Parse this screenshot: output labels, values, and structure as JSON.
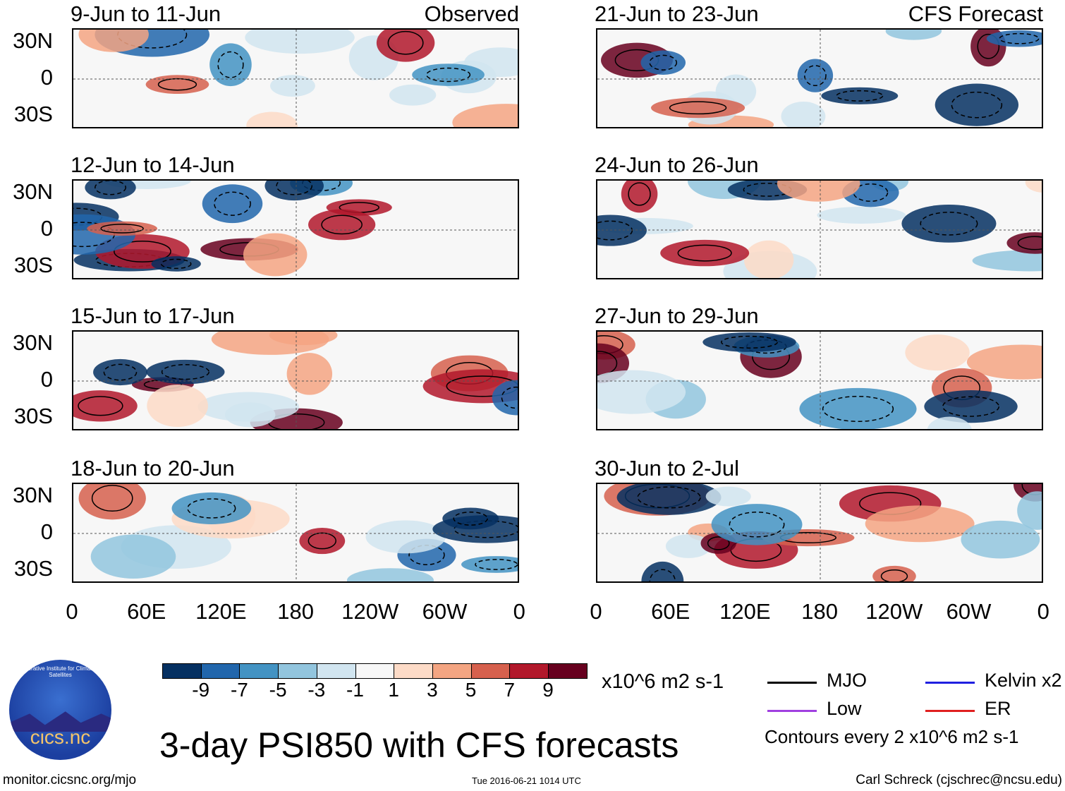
{
  "panels": [
    {
      "title": "9-Jun to 11-Jun",
      "tag": "Observed",
      "column": "left"
    },
    {
      "title": "12-Jun to 14-Jun",
      "tag": "",
      "column": "left"
    },
    {
      "title": "15-Jun to 17-Jun",
      "tag": "",
      "column": "left"
    },
    {
      "title": "18-Jun to 20-Jun",
      "tag": "",
      "column": "left"
    },
    {
      "title": "21-Jun to 23-Jun",
      "tag": "CFS Forecast",
      "column": "right"
    },
    {
      "title": "24-Jun to 26-Jun",
      "tag": "",
      "column": "right"
    },
    {
      "title": "27-Jun to 29-Jun",
      "tag": "",
      "column": "right"
    },
    {
      "title": "30-Jun to 2-Jul",
      "tag": "",
      "column": "right"
    }
  ],
  "lat_labels": [
    "30N",
    "0",
    "30S"
  ],
  "lon_labels": [
    "0",
    "60E",
    "120E",
    "180",
    "120W",
    "60W",
    "0"
  ],
  "colorbar": {
    "colors": [
      "#053061",
      "#2166ac",
      "#4393c3",
      "#92c5de",
      "#d1e5f0",
      "#f7f7f7",
      "#fddbc7",
      "#f4a582",
      "#d6604d",
      "#b2182b",
      "#67001f"
    ],
    "labels": [
      "-9",
      "-7",
      "-5",
      "-3",
      "-1",
      "1",
      "3",
      "5",
      "7",
      "9"
    ],
    "units": "x10^6 m2 s-1"
  },
  "legend": {
    "items": [
      {
        "label": "MJO",
        "color": "#000000"
      },
      {
        "label": "Kelvin x2",
        "color": "#2020e0"
      },
      {
        "label": "Low",
        "color": "#a040e0"
      },
      {
        "label": "ER",
        "color": "#e02020"
      }
    ],
    "note": "Contours every 2 x10^6 m2 s-1"
  },
  "title": "3-day PSI850 with CFS forecasts",
  "logo": {
    "text": "cics.nc",
    "ring": "Cooperative Institute for Climate and Satellites"
  },
  "footer": {
    "url": "monitor.cicsnc.org/mjo",
    "timestamp": "Tue 2016-06-21 1014 UTC",
    "author": "Carl Schreck (cjschrec@ncsu.edu)"
  }
}
